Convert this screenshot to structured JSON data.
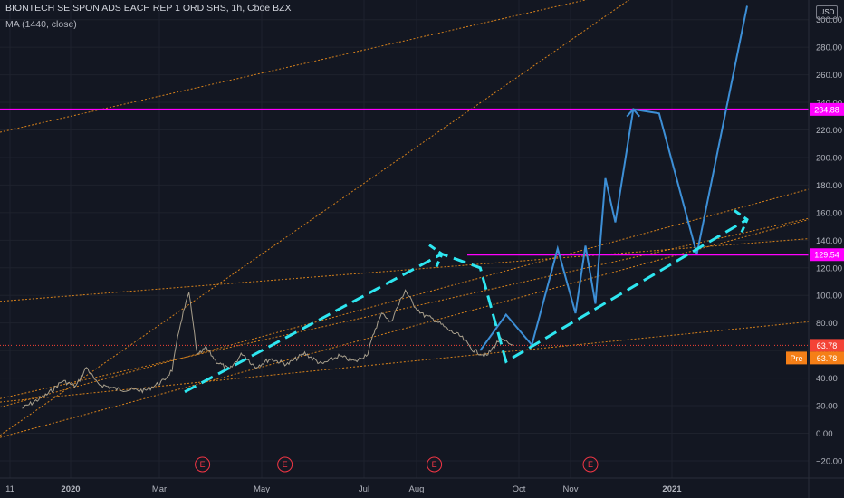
{
  "header": {
    "title": "BIONTECH SE SPON ADS EACH REP 1 ORD SHS, 1h, Cboe BZX",
    "indicator": "MA (1440, close)"
  },
  "currency_label": "USD",
  "colors": {
    "background": "#131722",
    "price": "#a89f8c",
    "trend_dotted": "#f7931a",
    "magenta_level": "#ff00ff",
    "projection_blue": "#3d8fd6",
    "projection_cyan_dashed": "#2ee6f0",
    "last_price_tag": "#f44336",
    "premarket_tag": "#f57f17",
    "earnings_marker": "#f23645"
  },
  "chart_data": {
    "type": "line",
    "y_axis": {
      "ylim": [
        -26,
        310
      ],
      "ticks": [
        -20,
        0,
        20,
        40,
        60,
        80,
        100,
        120,
        140,
        160,
        180,
        200,
        220,
        240,
        260,
        280,
        300
      ],
      "tick_labels": [
        "−20.00",
        "0.00",
        "20.00",
        "40.00",
        "60.00",
        "80.00",
        "100.00",
        "120.00",
        "140.00",
        "160.00",
        "180.00",
        "200.00",
        "220.00",
        "240.00",
        "260.00",
        "280.00",
        "300.00"
      ]
    },
    "x_axis": {
      "labels": [
        "11",
        "2020",
        "Mar",
        "May",
        "Jul",
        "Aug",
        "Oct",
        "Nov",
        "2021"
      ],
      "bold": [
        "2020",
        "2021"
      ]
    },
    "price_series": {
      "name": "price",
      "points": [
        [
          "Nov 2019",
          18
        ],
        [
          "Dec 2019",
          28
        ],
        [
          "Dec 2019",
          38
        ],
        [
          "Jan 2020",
          34
        ],
        [
          "Jan 2020",
          48
        ],
        [
          "Jan 2020",
          36
        ],
        [
          "Feb 2020",
          32
        ],
        [
          "Feb 2020",
          31
        ],
        [
          "Mar 2020",
          38
        ],
        [
          "Mar 2020",
          46
        ],
        [
          "Mar 2020",
          80
        ],
        [
          "Mar 2020",
          102
        ],
        [
          "Mar 2020",
          56
        ],
        [
          "Mar 2020",
          62
        ],
        [
          "Apr 2020",
          52
        ],
        [
          "Apr 2020",
          46
        ],
        [
          "Apr 2020",
          58
        ],
        [
          "Apr 2020",
          48
        ],
        [
          "May 2020",
          54
        ],
        [
          "May 2020",
          50
        ],
        [
          "May 2020",
          58
        ],
        [
          "Jun 2020",
          50
        ],
        [
          "Jun 2020",
          56
        ],
        [
          "Jun 2020",
          52
        ],
        [
          "Jul 2020",
          58
        ],
        [
          "Jul 2020",
          76
        ],
        [
          "Jul 2020",
          88
        ],
        [
          "Jul 2020",
          80
        ],
        [
          "Jul 2020",
          92
        ],
        [
          "Jul 2020",
          104
        ],
        [
          "Jul 2020",
          94
        ],
        [
          "Aug 2020",
          86
        ],
        [
          "Aug 2020",
          82
        ],
        [
          "Aug 2020",
          75
        ],
        [
          "Aug 2020",
          70
        ],
        [
          "Sep 2020",
          60
        ],
        [
          "Sep 2020",
          56
        ],
        [
          "Sep 2020",
          68
        ],
        [
          "Sep 2020",
          64
        ]
      ]
    },
    "horizontal_levels": [
      {
        "label": "234.88",
        "value": 234.88
      },
      {
        "label": "129.54",
        "value": 129.54
      }
    ],
    "last_price": {
      "label": "63.78",
      "value": 63.78
    },
    "premarket": {
      "prefix": "Pre",
      "label": "63.78",
      "value": 63.78
    },
    "projection_zigzag": [
      [
        "Sep 2020",
        60
      ],
      [
        "Sep 2020",
        86
      ],
      [
        "Oct 2020",
        64
      ],
      [
        "Oct 2020",
        134
      ],
      [
        "Nov 2020",
        87
      ],
      [
        "Nov 2020",
        136
      ],
      [
        "Nov 2020",
        94
      ],
      [
        "Nov 2020",
        185
      ],
      [
        "Nov 2020",
        153
      ],
      [
        "Dec 2020",
        235
      ],
      [
        "Dec 2020",
        232
      ],
      [
        "Jan 2021",
        130
      ],
      [
        "Feb 2021",
        310
      ]
    ],
    "projection_dashed": [
      [
        "Mar 2020",
        30
      ],
      [
        "Aug 2020",
        130
      ],
      [
        "Sep 2020",
        120
      ],
      [
        "Sep 2020",
        52
      ],
      [
        "Feb 2021",
        155
      ]
    ],
    "earnings_markers": [
      "E",
      "E",
      "E",
      "E"
    ]
  }
}
